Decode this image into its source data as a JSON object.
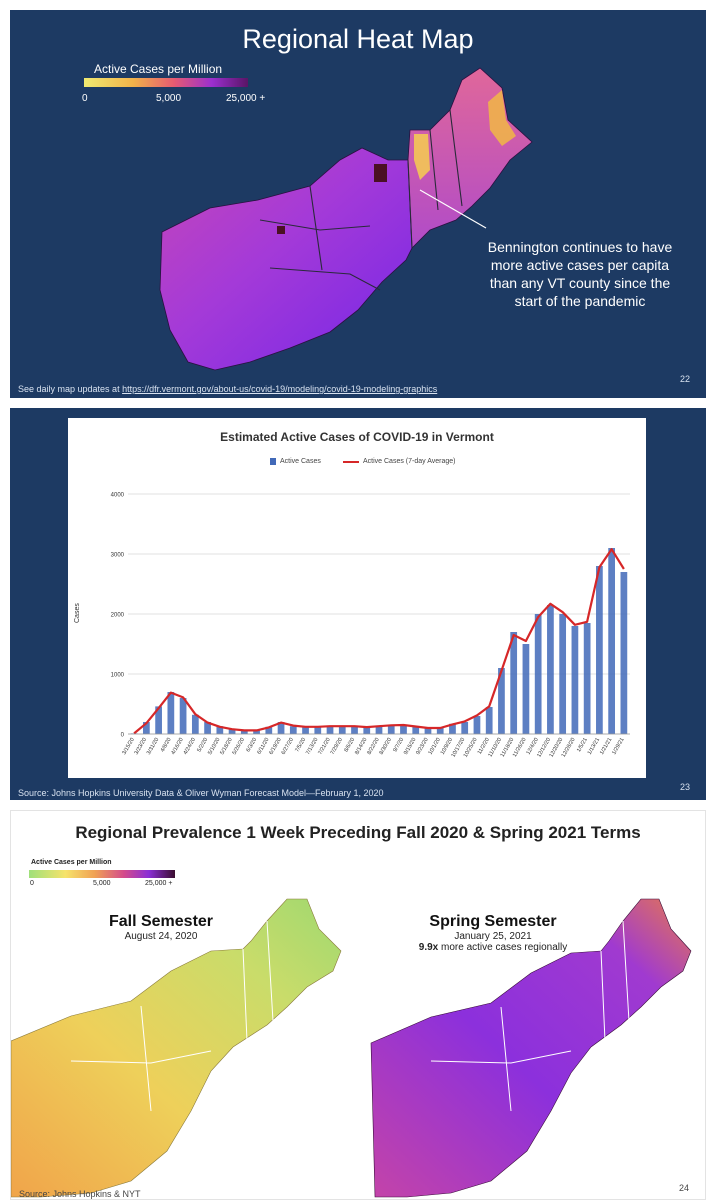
{
  "slide1": {
    "title": "Regional Heat Map",
    "legend_title": "Active Cases per Million",
    "legend_ticks": [
      "0",
      "5,000",
      "25,000 +"
    ],
    "annotation": "Bennington continues to have more active cases per capita than any VT county since the start of the pandemic",
    "footnote_prefix": "See daily map updates at ",
    "footnote_link": "https://dfr.vermont.gov/about-us/covid-19/modeling/covid-19-modeling-graphics",
    "page": "22"
  },
  "slide2": {
    "footnote": "Source: Johns Hopkins University Data & Oliver Wyman Forecast Model—February 1, 2020",
    "page": "23"
  },
  "slide3": {
    "title": "Regional Prevalence 1 Week Preceding Fall 2020 & Spring 2021 Terms",
    "legend_title": "Active Cases per Million",
    "legend_ticks": [
      "0",
      "5,000",
      "25,000 +"
    ],
    "fall_title": "Fall Semester",
    "fall_date": "August 24, 2020",
    "spring_title": "Spring Semester",
    "spring_date": "January 25, 2021",
    "spring_note_bold": "9.9x",
    "spring_note": " more active cases regionally",
    "source": "Source: Johns Hopkins & NYT",
    "page": "24"
  },
  "colors": {
    "navy": "#1d3a63",
    "bar": "#4169b8",
    "line": "#d62728"
  },
  "chart_data": {
    "type": "bar",
    "title": "Estimated Active Cases of COVID-19 in Vermont",
    "xlabel": "",
    "ylabel": "Cases",
    "ylim": [
      0,
      4000
    ],
    "yticks": [
      0,
      1000,
      2000,
      3000,
      4000
    ],
    "grid": true,
    "legend": [
      "Active Cases",
      "Active Cases (7-day Average)"
    ],
    "legend_position": "top-center",
    "categories": [
      "3/15/20",
      "3/23/20",
      "3/31/20",
      "4/8/20",
      "4/16/20",
      "4/24/20",
      "5/2/20",
      "5/10/20",
      "5/18/20",
      "5/26/20",
      "6/3/20",
      "6/11/20",
      "6/19/20",
      "6/27/20",
      "7/5/20",
      "7/13/20",
      "7/21/20",
      "7/29/20",
      "8/6/20",
      "8/14/20",
      "8/22/20",
      "8/30/20",
      "9/7/20",
      "9/15/20",
      "9/23/20",
      "10/1/20",
      "10/9/20",
      "10/17/20",
      "10/25/20",
      "11/2/20",
      "11/10/20",
      "11/18/20",
      "11/26/20",
      "12/4/20",
      "12/12/20",
      "12/20/20",
      "12/28/20",
      "1/5/21",
      "1/13/21",
      "1/21/21",
      "1/29/21"
    ],
    "series": [
      {
        "name": "Active Cases",
        "values": [
          10,
          200,
          460,
          700,
          600,
          320,
          200,
          130,
          80,
          60,
          60,
          120,
          200,
          130,
          120,
          120,
          130,
          130,
          130,
          110,
          130,
          150,
          150,
          120,
          100,
          100,
          170,
          200,
          300,
          450,
          1100,
          1700,
          1500,
          2000,
          2150,
          2000,
          1800,
          1850,
          2800,
          3100,
          2700
        ]
      },
      {
        "name": "Active Cases (7-day Average)",
        "values": [
          10,
          180,
          430,
          690,
          610,
          330,
          190,
          120,
          80,
          60,
          60,
          110,
          190,
          140,
          120,
          120,
          130,
          130,
          130,
          115,
          130,
          145,
          150,
          125,
          100,
          100,
          160,
          210,
          310,
          460,
          1050,
          1650,
          1550,
          1950,
          2170,
          2030,
          1820,
          1870,
          2780,
          3080,
          2750
        ]
      }
    ]
  }
}
